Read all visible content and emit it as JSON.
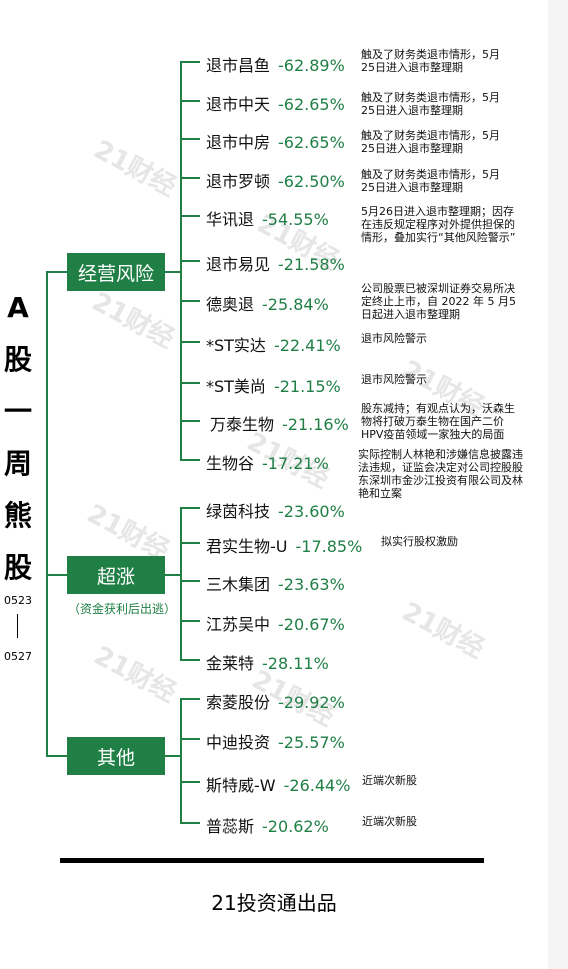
{
  "title_chars": [
    "A",
    "股",
    "一",
    "周",
    "熊",
    "股"
  ],
  "date_start": "0523",
  "date_end": "0527",
  "watermark": "21财经",
  "categories": [
    {
      "label": "经营风险",
      "sublabel": ""
    },
    {
      "label": "超涨",
      "sublabel": "（资金获利后出逃）"
    },
    {
      "label": "其他",
      "sublabel": ""
    }
  ],
  "stocks": [
    {
      "name": "退市昌鱼",
      "pct": "-62.89%",
      "note": "触及了财务类退市情形，5月\n25日进入退市整理期"
    },
    {
      "name": "退市中天",
      "pct": "-62.65%",
      "note": "触及了财务类退市情形，5月\n25日进入退市整理期"
    },
    {
      "name": "退市中房",
      "pct": "-62.65%",
      "note": "触及了财务类退市情形，5月\n25日进入退市整理期"
    },
    {
      "name": "退市罗顿",
      "pct": "-62.50%",
      "note": "触及了财务类退市情形，5月\n25日进入退市整理期"
    },
    {
      "name": "华讯退",
      "pct": "-54.55%",
      "note": "5月26日进入退市整理期；因存\n在违反规定程序对外提供担保的\n情形，叠加实行“其他风险警示”"
    },
    {
      "name": "退市易见",
      "pct": "-21.58%",
      "note": ""
    },
    {
      "name": "德奥退",
      "pct": "-25.84%",
      "note": "公司股票已被深圳证券交易所决\n定终止上市，自 2022 年 5 月5\n日起进入退市整理期"
    },
    {
      "name": "*ST实达",
      "pct": "-22.41%",
      "note": "退市风险警示"
    },
    {
      "name": "*ST美尚",
      "pct": "-21.15%",
      "note": "退市风险警示"
    },
    {
      "name": "万泰生物",
      "pct": "-21.16%",
      "note": "股东减持；有观点认为，沃森生\n物将打破万泰生物在国产二价\nHPV疫苗领域一家独大的局面"
    },
    {
      "name": "生物谷",
      "pct": "-17.21%",
      "note": "实际控制人林艳和涉嫌信息披露违\n法违规，证监会决定对公司控股股\n东深圳市金沙江投资有限公司及林\n艳和立案"
    },
    {
      "name": "绿茵科技",
      "pct": "-23.60%",
      "note": ""
    },
    {
      "name": "君实生物-U",
      "pct": "-17.85%",
      "note": "拟实行股权激励"
    },
    {
      "name": "三木集团",
      "pct": "-23.63%",
      "note": ""
    },
    {
      "name": "江苏吴中",
      "pct": "-20.67%",
      "note": ""
    },
    {
      "name": "金莱特",
      "pct": "-28.11%",
      "note": ""
    },
    {
      "name": "索菱股份",
      "pct": "-29.92%",
      "note": ""
    },
    {
      "name": "中迪投资",
      "pct": "-25.57%",
      "note": ""
    },
    {
      "name": "斯特威-W",
      "pct": "-26.44%",
      "note": "近端次新股"
    },
    {
      "name": "普蕊斯",
      "pct": "-20.62%",
      "note": "近端次新股"
    }
  ],
  "footer": "21投资通出品",
  "colors": {
    "accent": "#1f7f45",
    "text": "#111111"
  }
}
